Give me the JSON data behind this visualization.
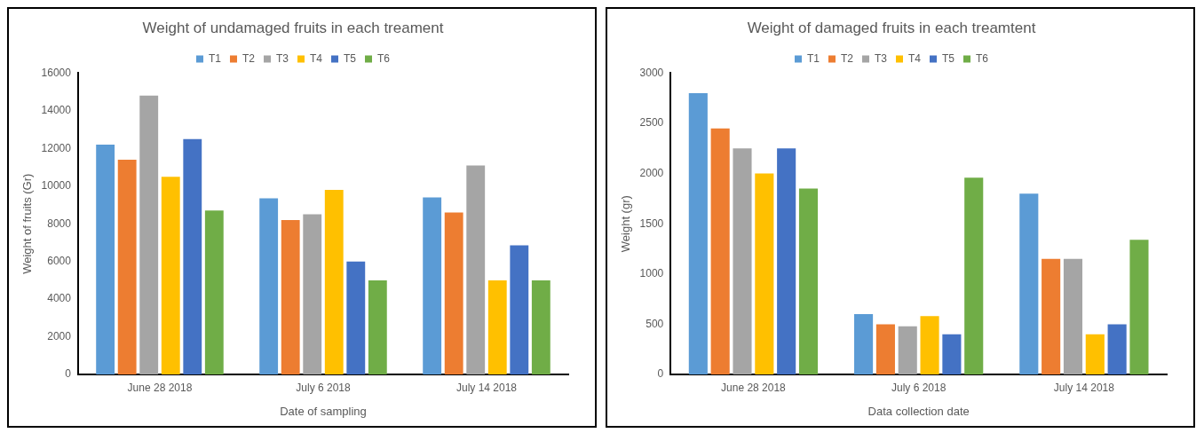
{
  "chart_data": [
    {
      "type": "bar",
      "title": "Weight of undamaged fruits in each treament",
      "xlabel": "Date of sampling",
      "ylabel": "Weight of fruits (Gr)",
      "categories": [
        "June 28 2018",
        "July 6 2018",
        "July 14 2018"
      ],
      "series": [
        {
          "name": "T1",
          "color": "#5b9bd5",
          "values": [
            12200,
            9350,
            9400
          ]
        },
        {
          "name": "T2",
          "color": "#ed7d31",
          "values": [
            11400,
            8200,
            8600
          ]
        },
        {
          "name": "T3",
          "color": "#a5a5a5",
          "values": [
            14800,
            8500,
            11100
          ]
        },
        {
          "name": "T4",
          "color": "#ffc000",
          "values": [
            10500,
            9800,
            5000
          ]
        },
        {
          "name": "T5",
          "color": "#4472c4",
          "values": [
            12500,
            6000,
            6850
          ]
        },
        {
          "name": "T6",
          "color": "#70ad47",
          "values": [
            8700,
            5000,
            5000
          ]
        }
      ],
      "ylim": [
        0,
        16000
      ],
      "yticks": [
        0,
        2000,
        4000,
        6000,
        8000,
        10000,
        12000,
        14000,
        16000
      ],
      "grid": false,
      "legend": "top"
    },
    {
      "type": "bar",
      "title": "Weight of damaged fruits in each treamtent",
      "xlabel": "Data collection date",
      "ylabel": "Weight (gr)",
      "categories": [
        "June 28 2018",
        "July 6 2018",
        "July 14 2018"
      ],
      "series": [
        {
          "name": "T1",
          "color": "#5b9bd5",
          "values": [
            2800,
            600,
            1800
          ]
        },
        {
          "name": "T2",
          "color": "#ed7d31",
          "values": [
            2450,
            500,
            1150
          ]
        },
        {
          "name": "T3",
          "color": "#a5a5a5",
          "values": [
            2250,
            480,
            1150
          ]
        },
        {
          "name": "T4",
          "color": "#ffc000",
          "values": [
            2000,
            580,
            400
          ]
        },
        {
          "name": "T5",
          "color": "#4472c4",
          "values": [
            2250,
            400,
            500
          ]
        },
        {
          "name": "T6",
          "color": "#70ad47",
          "values": [
            1850,
            1960,
            1340
          ]
        }
      ],
      "ylim": [
        0,
        3000
      ],
      "yticks": [
        0,
        500,
        1000,
        1500,
        2000,
        2500,
        3000
      ],
      "grid": false,
      "legend": "top"
    }
  ]
}
